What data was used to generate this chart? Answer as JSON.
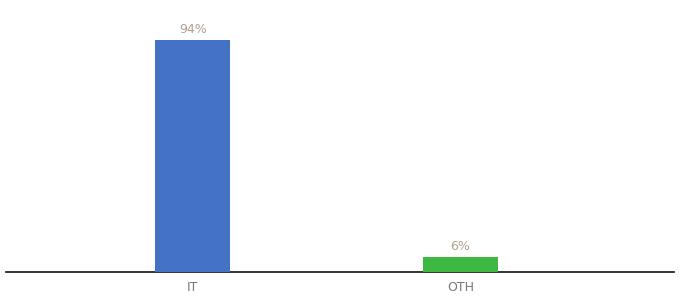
{
  "categories": [
    "IT",
    "OTH"
  ],
  "values": [
    94,
    6
  ],
  "bar_colors": [
    "#4472c4",
    "#3cb843"
  ],
  "label_texts": [
    "94%",
    "6%"
  ],
  "background_color": "#ffffff",
  "text_color": "#b0a090",
  "label_fontsize": 9,
  "tick_fontsize": 9,
  "tick_color": "#777777",
  "ylim": [
    0,
    108
  ],
  "bar_width": 0.28,
  "x_positions": [
    1,
    2
  ],
  "xlim": [
    0.3,
    2.8
  ]
}
